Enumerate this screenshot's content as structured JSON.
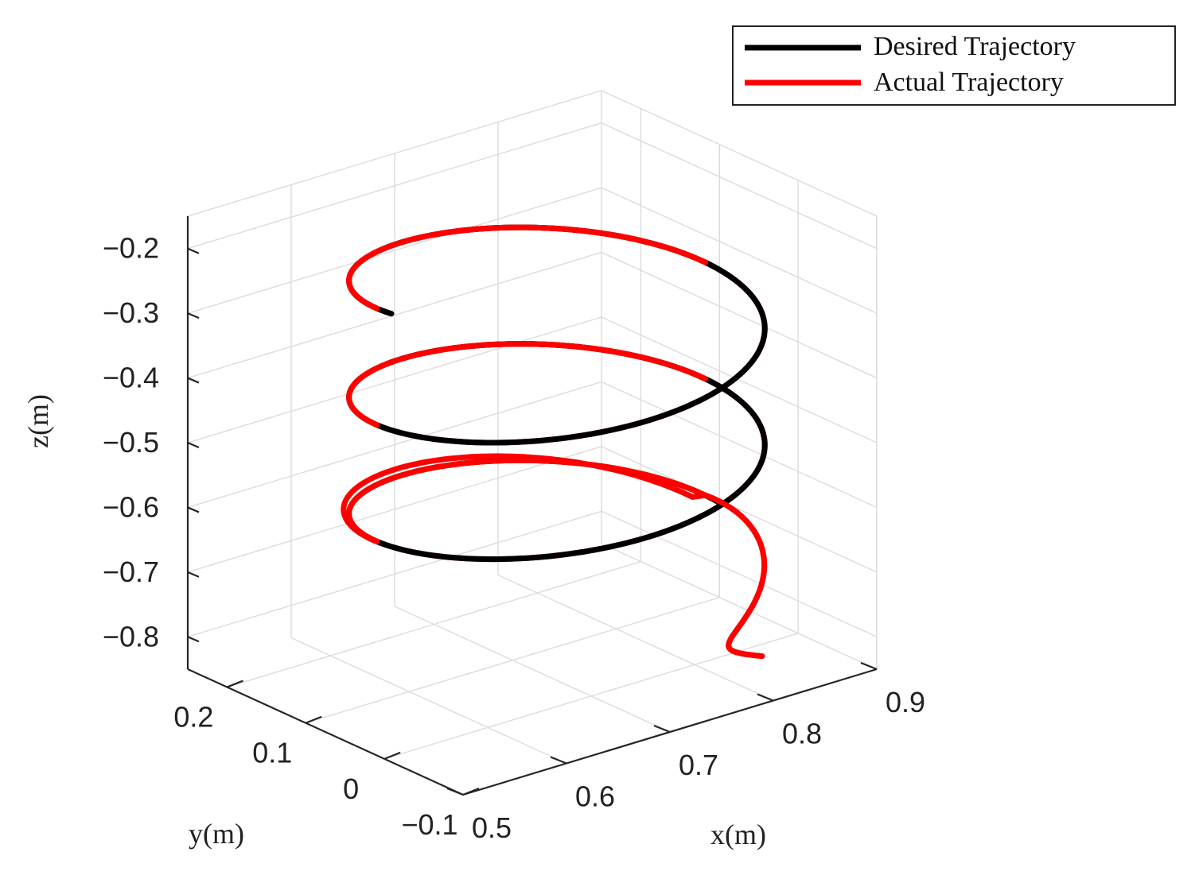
{
  "chart_data": {
    "type": "line3d",
    "title": "",
    "xlabel": "x(m)",
    "ylabel": "y(m)",
    "zlabel": "z(m)",
    "xlim": [
      0.5,
      0.9
    ],
    "ylim": [
      -0.1,
      0.25
    ],
    "zlim": [
      -0.85,
      -0.15
    ],
    "x_ticks": [
      "0.5",
      "0.6",
      "0.7",
      "0.8",
      "0.9"
    ],
    "y_ticks": [
      "−0.1",
      "0",
      "0.1",
      "0.2"
    ],
    "z_ticks": [
      "−0.2",
      "−0.3",
      "−0.4",
      "−0.5",
      "−0.6",
      "−0.7",
      "−0.8"
    ],
    "grid": true,
    "legend_position": "top-right",
    "series": [
      {
        "name": "Desired Trajectory",
        "color": "#000000",
        "shape": "helix",
        "center_x": 0.72,
        "center_y": 0.07,
        "radius": 0.16,
        "z_start": -0.68,
        "z_end": -0.23,
        "turns": 2.5
      },
      {
        "name": "Actual Trajectory",
        "color": "#ff0000",
        "shape": "helix",
        "center_x": 0.72,
        "center_y": 0.07,
        "radius": 0.16,
        "z_start": -0.68,
        "z_end": -0.23,
        "turns": 2.5,
        "start_point": [
          0.85,
          -0.02,
          -0.85
        ],
        "transition_end_turn": 0.5
      }
    ]
  }
}
